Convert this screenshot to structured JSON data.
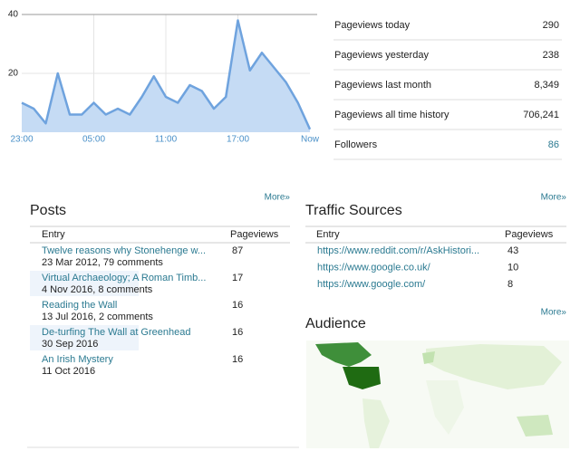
{
  "chart_data": {
    "type": "area",
    "categories": [
      "23:00",
      null,
      null,
      null,
      null,
      null,
      "05:00",
      null,
      null,
      null,
      null,
      null,
      "11:00",
      null,
      null,
      null,
      null,
      null,
      "17:00",
      null,
      null,
      null,
      null,
      null,
      "Now"
    ],
    "values": [
      10,
      8,
      3,
      20,
      6,
      6,
      10,
      6,
      8,
      6,
      12,
      19,
      12,
      10,
      16,
      14,
      8,
      12,
      38,
      21,
      27,
      22,
      17,
      10,
      1
    ],
    "ylim": [
      0,
      40
    ],
    "yticks": [
      20,
      40
    ],
    "color": "#6fa3de",
    "fill": "#c5dbf4",
    "grid": true
  },
  "stats": [
    {
      "label": "Pageviews today",
      "value": 290
    },
    {
      "label": "Pageviews yesterday",
      "value": 238
    },
    {
      "label": "Pageviews last month",
      "value": "8,349"
    },
    {
      "label": "Pageviews all time history",
      "value": "706,241"
    },
    {
      "label": "Followers",
      "value": 86
    }
  ],
  "posts": {
    "title": "Posts",
    "more": "More»",
    "columns": [
      "Entry",
      "Pageviews"
    ],
    "rows": [
      {
        "entry": "Twelve reasons why Stonehenge w...",
        "meta": "23 Mar 2012, 79 comments",
        "pageviews": 87
      },
      {
        "entry": "Virtual Archaeology; A Roman Timb...",
        "meta": "4 Nov 2016, 8 comments",
        "pageviews": 17
      },
      {
        "entry": "Reading the Wall",
        "meta": "13 Jul 2016, 2 comments",
        "pageviews": 16
      },
      {
        "entry": "De-turfing The Wall at Greenhead",
        "meta": "30 Sep 2016",
        "pageviews": 16
      },
      {
        "entry": "An Irish Mystery",
        "meta": "11 Oct 2016",
        "pageviews": 16
      }
    ]
  },
  "traffic": {
    "title": "Traffic Sources",
    "more": "More»",
    "columns": [
      "Entry",
      "Pageviews"
    ],
    "rows": [
      {
        "entry": "https://www.reddit.com/r/AskHistori...",
        "pageviews": 43
      },
      {
        "entry": "https://www.google.co.uk/",
        "pageviews": 10
      },
      {
        "entry": "https://www.google.com/",
        "pageviews": 8
      }
    ]
  },
  "audience": {
    "title": "Audience",
    "more": "More»"
  }
}
